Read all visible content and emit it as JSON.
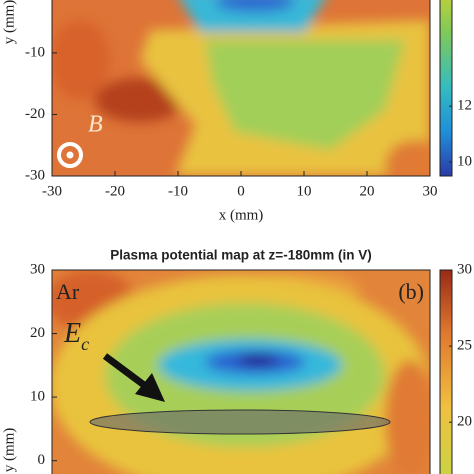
{
  "chart_data": [
    {
      "type": "contour",
      "xlabel": "x (mm)",
      "ylabel": "y (mm)",
      "xlim": [
        -30,
        30
      ],
      "xticks": [
        -30,
        -20,
        -10,
        0,
        10,
        20,
        30
      ],
      "ylim": [
        -30,
        -1.4
      ],
      "yticks": [
        -30,
        -20,
        -10
      ],
      "colorbar": {
        "lim": [
          9.5,
          15.8
        ],
        "ticks": [
          10,
          12
        ]
      },
      "annotations": [
        "B"
      ]
    },
    {
      "type": "contour",
      "title": "Plasma potential map at z=-180mm (in V)",
      "ylabel": "y (mm)",
      "xlim": [
        -30,
        30
      ],
      "ylim": [
        -2.1,
        30
      ],
      "yticks": [
        0,
        10,
        20,
        30
      ],
      "colorbar": {
        "lim": [
          16.6,
          30
        ],
        "ticks": [
          20,
          25,
          30
        ]
      },
      "annotations": [
        "Ar",
        "(b)"
      ],
      "field_label": {
        "main": "E",
        "sub": "c"
      }
    }
  ]
}
